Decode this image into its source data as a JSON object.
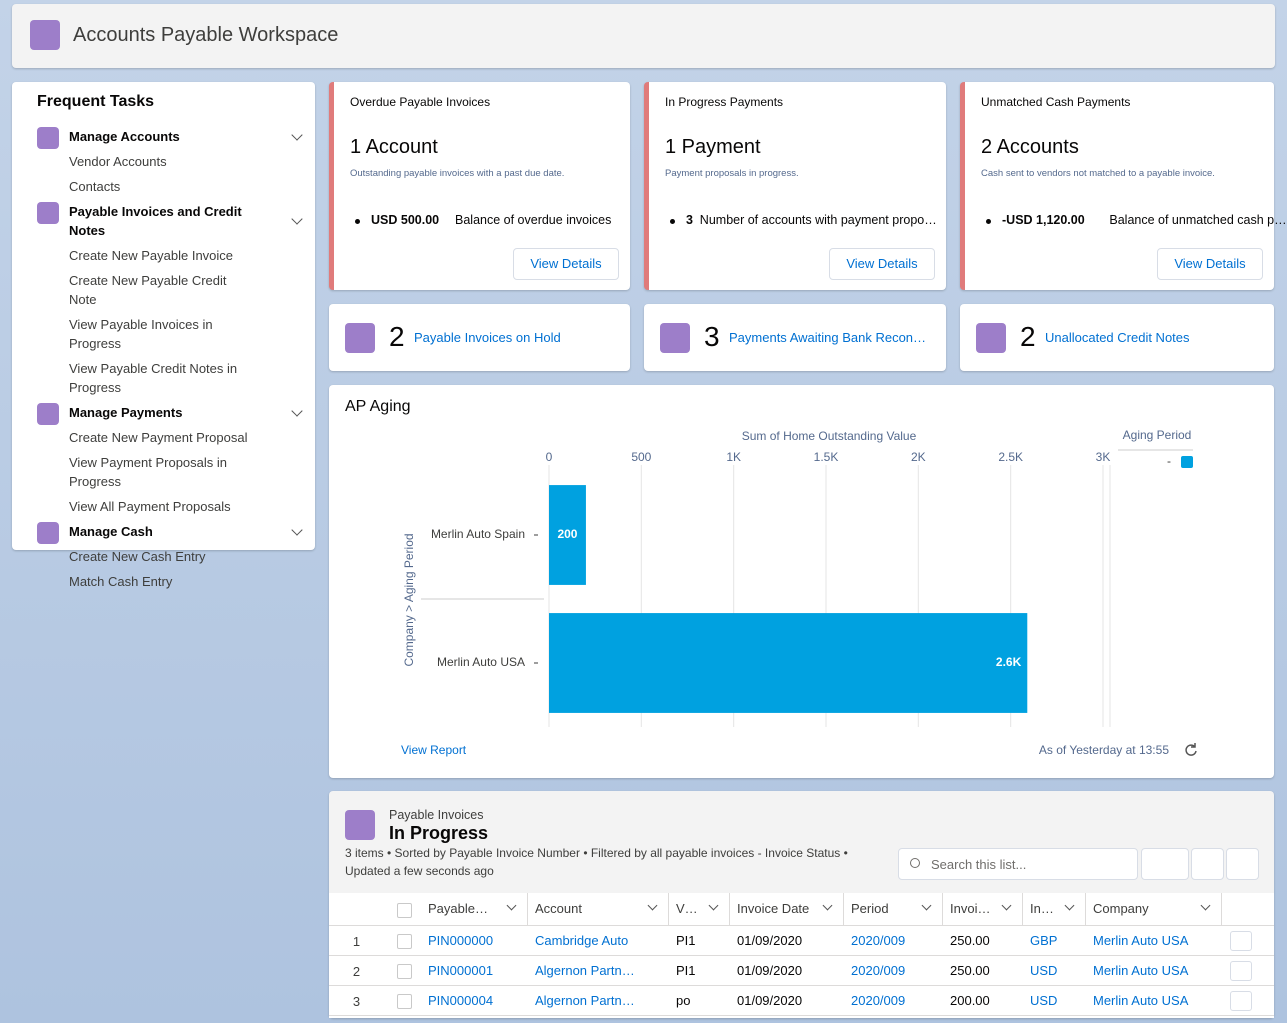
{
  "header": {
    "title": "Accounts Payable Workspace"
  },
  "frequent_tasks": {
    "title": "Frequent Tasks",
    "groups": [
      {
        "label": "Manage Accounts",
        "items": [
          "Vendor Accounts",
          "Contacts"
        ]
      },
      {
        "label": "Payable Invoices and Credit Notes",
        "items": [
          "Create New Payable Invoice",
          "Create New Payable Credit Note",
          "View Payable Invoices in Progress",
          "View Payable Credit Notes in Progress"
        ]
      },
      {
        "label": "Manage Payments",
        "items": [
          "Create New Payment Proposal",
          "View Payment Proposals in Progress",
          "View All Payment Proposals"
        ]
      },
      {
        "label": "Manage Cash",
        "items": [
          "Create New Cash Entry",
          "Match Cash Entry"
        ]
      }
    ]
  },
  "cards": [
    {
      "title": "Overdue Payable Invoices",
      "headline": "1 Account",
      "description": "Outstanding payable invoices with a past due date.",
      "metric_value": "USD 500.00",
      "metric_label": "Balance of overdue invoices",
      "button": "View Details"
    },
    {
      "title": "In Progress Payments",
      "headline": "1 Payment",
      "description": "Payment proposals in progress.",
      "metric_value": "3",
      "metric_label": "Number of accounts with payment propo…",
      "button": "View Details"
    },
    {
      "title": "Unmatched Cash Payments",
      "headline": "2 Accounts",
      "description": "Cash sent to vendors not matched to a payable invoice.",
      "metric_value": "-USD 1,120.00",
      "metric_label": "Balance of unmatched cash p…",
      "button": "View Details"
    }
  ],
  "counters": [
    {
      "count": 2,
      "label": "Payable Invoices on Hold"
    },
    {
      "count": 3,
      "label": "Payments Awaiting Bank Recon…"
    },
    {
      "count": 2,
      "label": "Unallocated Credit Notes"
    }
  ],
  "chart_data": {
    "type": "hbar",
    "title": "AP Aging",
    "x_label": "Sum of Home Outstanding Value",
    "y_label": "Company > Aging Period",
    "categories": [
      "Merlin Auto Spain",
      "Merlin Auto USA"
    ],
    "series": [
      {
        "name": "-",
        "color": "#00a1e0",
        "values": [
          200,
          2590
        ],
        "value_labels": [
          "200",
          "2.6K"
        ]
      }
    ],
    "xlim": [
      0,
      3000
    ],
    "xticks": [
      0,
      500,
      {
        "value": 1000,
        "label": "1K"
      },
      {
        "value": 1500,
        "label": "1.5K"
      },
      {
        "value": 2000,
        "label": "2K"
      },
      {
        "value": 2500,
        "label": "2.5K"
      },
      {
        "value": 3000,
        "label": "3K"
      }
    ],
    "grid": true,
    "legend_title": "Aging Period",
    "legend_position": "top-right",
    "footer_link": "View Report",
    "footer_timestamp": "As of Yesterday at 13:55"
  },
  "list": {
    "object": "Payable Invoices",
    "title": "In Progress",
    "meta": "3 items • Sorted by Payable Invoice Number • Filtered by all payable invoices - Invoice Status •",
    "updated": "Updated a few seconds ago",
    "search_placeholder": "Search this list...",
    "columns": [
      "Payable…",
      "Account",
      "V…",
      "Invoice Date",
      "Period",
      "Invoi…",
      "In…",
      "Company"
    ],
    "rows": [
      [
        1,
        "PIN000000",
        "Cambridge Auto",
        "PI1",
        "01/09/2020",
        "2020/009",
        "250.00",
        "GBP",
        "Merlin Auto USA"
      ],
      [
        2,
        "PIN000001",
        "Algernon Partn…",
        "PI1",
        "01/09/2020",
        "2020/009",
        "250.00",
        "USD",
        "Merlin Auto USA"
      ],
      [
        3,
        "PIN000004",
        "Algernon Partn…",
        "po",
        "01/09/2020",
        "2020/009",
        "200.00",
        "USD",
        "Merlin Auto USA"
      ]
    ]
  }
}
